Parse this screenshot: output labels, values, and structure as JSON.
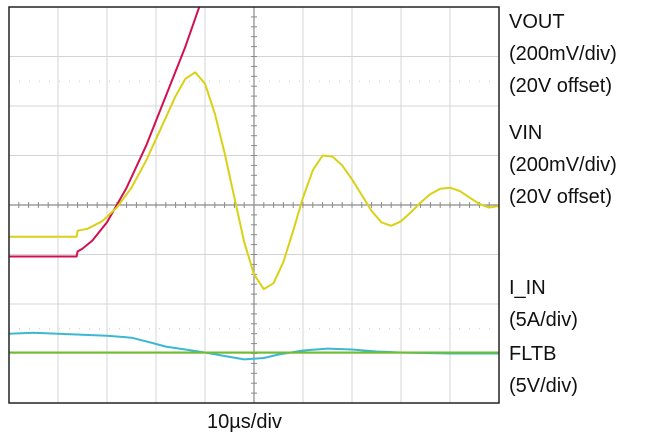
{
  "chart_data": {
    "type": "line",
    "xlabel": "10µs/div",
    "grid": true,
    "x_divisions": 10,
    "y_divisions": 8,
    "x_range_div": [
      0,
      10
    ],
    "y_range_div": [
      -4,
      4
    ],
    "channels": [
      {
        "name": "VOUT",
        "scale": "(200mV/div)",
        "offset": "(20V offset)",
        "color": "#d0104f"
      },
      {
        "name": "VIN",
        "scale": "(200mV/div)",
        "offset": "(20V offset)",
        "color": "#d8d217"
      },
      {
        "name": "I_IN",
        "scale": "(5A/div)",
        "offset": "",
        "color": "#3cb8d2"
      },
      {
        "name": "FLTB",
        "scale": "(5V/div)",
        "offset": "",
        "color": "#6fbf2a"
      }
    ],
    "series": [
      {
        "name": "VOUT",
        "color": "#d0104f",
        "x": [
          0,
          0.5,
          1.0,
          1.38,
          1.4,
          1.5,
          1.7,
          2.0,
          2.4,
          2.8,
          3.2,
          3.6,
          3.9,
          4.1
        ],
        "y": [
          -1.04,
          -1.04,
          -1.04,
          -1.04,
          -0.94,
          -0.88,
          -0.72,
          -0.35,
          0.35,
          1.2,
          2.2,
          3.2,
          4.05,
          4.6
        ]
      },
      {
        "name": "VIN",
        "color": "#d8d217",
        "x": [
          0,
          0.5,
          1.0,
          1.38,
          1.4,
          1.6,
          1.9,
          2.2,
          2.5,
          2.8,
          3.1,
          3.4,
          3.6,
          3.8,
          4.0,
          4.2,
          4.4,
          4.6,
          4.8,
          5.0,
          5.2,
          5.4,
          5.6,
          5.8,
          6.0,
          6.2,
          6.4,
          6.6,
          6.8,
          7.0,
          7.2,
          7.4,
          7.6,
          7.8,
          8.0,
          8.2,
          8.4,
          8.6,
          8.8,
          9.0,
          9.2,
          9.4,
          9.6,
          9.8,
          10.0
        ],
        "y": [
          -0.64,
          -0.64,
          -0.64,
          -0.64,
          -0.52,
          -0.48,
          -0.33,
          -0.05,
          0.35,
          0.9,
          1.55,
          2.2,
          2.55,
          2.68,
          2.45,
          1.85,
          1.05,
          0.15,
          -0.75,
          -1.4,
          -1.7,
          -1.58,
          -1.15,
          -0.52,
          0.15,
          0.7,
          1.0,
          0.98,
          0.8,
          0.52,
          0.2,
          -0.12,
          -0.35,
          -0.42,
          -0.33,
          -0.15,
          0.05,
          0.22,
          0.33,
          0.35,
          0.28,
          0.15,
          0.02,
          -0.05,
          -0.02
        ]
      },
      {
        "name": "I_IN",
        "color": "#3cb8d2",
        "x": [
          0,
          0.5,
          1.0,
          1.5,
          2.0,
          2.5,
          2.9,
          3.2,
          3.6,
          4.0,
          4.4,
          4.8,
          5.2,
          5.5,
          6.0,
          6.5,
          7.0,
          7.5,
          8.0,
          8.5,
          9.0,
          9.5,
          10.0
        ],
        "y": [
          -2.6,
          -2.58,
          -2.6,
          -2.62,
          -2.64,
          -2.68,
          -2.78,
          -2.86,
          -2.92,
          -2.98,
          -3.05,
          -3.12,
          -3.09,
          -3.02,
          -2.94,
          -2.9,
          -2.92,
          -2.96,
          -2.98,
          -2.99,
          -3.0,
          -3.0,
          -3.0
        ]
      },
      {
        "name": "FLTB",
        "color": "#6fbf2a",
        "x": [
          0,
          2.5,
          5.0,
          7.5,
          10.0
        ],
        "y": [
          -2.98,
          -2.98,
          -2.98,
          -2.98,
          -2.98
        ]
      }
    ]
  }
}
